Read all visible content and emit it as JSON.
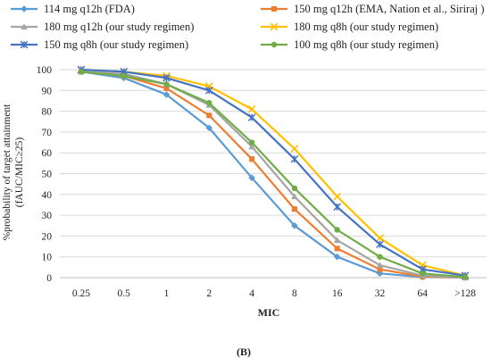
{
  "chart_data": {
    "type": "line",
    "categories": [
      "0.25",
      "0.5",
      "1",
      "2",
      "4",
      "8",
      "16",
      "32",
      "64",
      ">128"
    ],
    "xlabel": "MIC",
    "ylabel_line1": "%probability of target attainment",
    "ylabel_line2": "(fAUC/MIC≥25)",
    "ylim": [
      0,
      100
    ],
    "yticks": [
      0,
      10,
      20,
      30,
      40,
      50,
      60,
      70,
      80,
      90,
      100
    ],
    "grid": true,
    "legend_position": "top",
    "panel_label": "(B)",
    "series": [
      {
        "name": "114 mg q12h (FDA)",
        "color": "#5b9bd5",
        "marker": "diamond",
        "values": [
          99,
          96,
          88,
          72,
          48,
          25,
          10,
          2,
          0.3,
          0
        ]
      },
      {
        "name": "150 mg q12h (EMA, Nation et al., Siriraj )",
        "color": "#ed7d31",
        "marker": "square",
        "values": [
          99,
          97,
          91,
          78,
          57,
          33,
          14,
          4,
          0.5,
          0
        ]
      },
      {
        "name": "180 mg q12h (our study regimen)",
        "color": "#a5a5a5",
        "marker": "triangle",
        "values": [
          99,
          98,
          93,
          83,
          63,
          39,
          18,
          6,
          1,
          0
        ]
      },
      {
        "name": "180 mg q8h (our study regimen)",
        "color": "#ffc000",
        "marker": "x",
        "values": [
          100,
          99,
          97,
          92,
          81,
          62,
          39,
          19,
          6,
          1
        ]
      },
      {
        "name": "150 mg q8h (our study regimen)",
        "color": "#4472c4",
        "marker": "star",
        "values": [
          100,
          99,
          96,
          90,
          77,
          57,
          34,
          16,
          4,
          1
        ]
      },
      {
        "name": "100 mg q8h (our study regimen)",
        "color": "#70ad47",
        "marker": "circle",
        "values": [
          99,
          97,
          93,
          84,
          65,
          43,
          23,
          10,
          2,
          0.3
        ]
      }
    ]
  }
}
